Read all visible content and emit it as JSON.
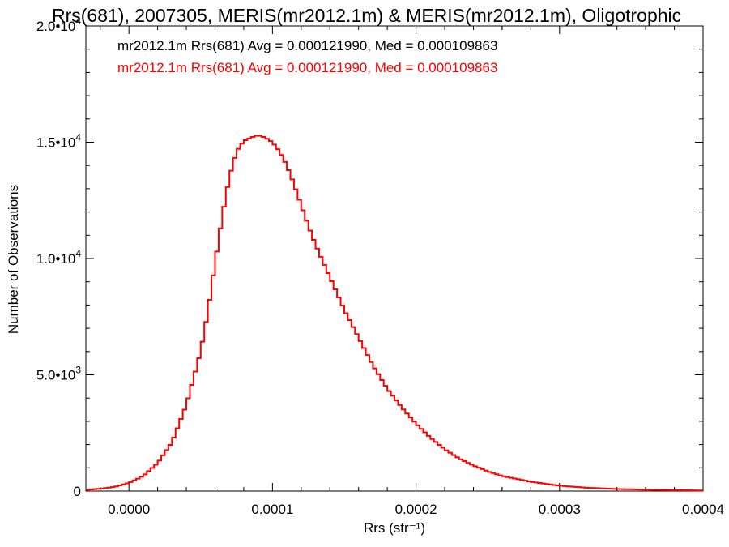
{
  "chart_data": {
    "type": "line",
    "style": "step-histogram",
    "title": "Rrs(681), 2007305, MERIS(mr2012.1m) & MERIS(mr2012.1m), Oligotrophic",
    "xlabel": "Rrs (str⁻¹)",
    "ylabel": "Number of Observations",
    "xlim": [
      -3e-05,
      0.0004
    ],
    "ylim": [
      0,
      20000
    ],
    "x_ticks": [
      0.0,
      0.0001,
      0.0002,
      0.0003,
      0.0004
    ],
    "x_tick_labels": [
      "0.0000",
      "0.0001",
      "0.0002",
      "0.0003",
      "0.0004"
    ],
    "y_ticks": [
      0,
      5000,
      10000,
      15000,
      20000
    ],
    "y_tick_labels": [
      {
        "base": "0",
        "exp": ""
      },
      {
        "base": "5.0•10",
        "exp": "3"
      },
      {
        "base": "1.0•10",
        "exp": "4"
      },
      {
        "base": "1.5•10",
        "exp": "4"
      },
      {
        "base": "2.0•10",
        "exp": "4"
      }
    ],
    "legend": [
      {
        "text": "mr2012.1m Rrs(681) Avg = 0.000121990, Med = 0.000109863",
        "color": "#000000"
      },
      {
        "text": "mr2012.1m Rrs(681) Avg = 0.000121990, Med = 0.000109863",
        "color": "#ff0000"
      }
    ],
    "legend_position": "top-left",
    "series": [
      {
        "color": "#ff0000",
        "points": [
          [
            -3e-05,
            50
          ],
          [
            -2e-05,
            100
          ],
          [
            -1e-05,
            180
          ],
          [
            0.0,
            350
          ],
          [
            1e-05,
            650
          ],
          [
            2e-05,
            1200
          ],
          [
            3e-05,
            2100
          ],
          [
            4e-05,
            3700
          ],
          [
            5e-05,
            6000
          ],
          [
            5.5e-05,
            7700
          ],
          [
            6e-05,
            9800
          ],
          [
            6.5e-05,
            11800
          ],
          [
            7e-05,
            13500
          ],
          [
            7.5e-05,
            14600
          ],
          [
            8e-05,
            15050
          ],
          [
            8.5e-05,
            15200
          ],
          [
            9e-05,
            15300
          ],
          [
            9.5e-05,
            15200
          ],
          [
            0.0001,
            15000
          ],
          [
            0.000105,
            14600
          ],
          [
            0.00011,
            14000
          ],
          [
            0.000115,
            13200
          ],
          [
            0.00012,
            12300
          ],
          [
            0.000125,
            11400
          ],
          [
            0.00013,
            10600
          ],
          [
            0.000135,
            9900
          ],
          [
            0.00014,
            9200
          ],
          [
            0.00015,
            7800
          ],
          [
            0.00016,
            6600
          ],
          [
            0.00017,
            5400
          ],
          [
            0.00018,
            4400
          ],
          [
            0.00019,
            3600
          ],
          [
            0.0002,
            2900
          ],
          [
            0.00021,
            2300
          ],
          [
            0.00022,
            1800
          ],
          [
            0.00023,
            1400
          ],
          [
            0.00024,
            1100
          ],
          [
            0.00025,
            850
          ],
          [
            0.00026,
            650
          ],
          [
            0.00028,
            400
          ],
          [
            0.0003,
            230
          ],
          [
            0.00032,
            140
          ],
          [
            0.00034,
            90
          ],
          [
            0.00036,
            60
          ],
          [
            0.00038,
            40
          ],
          [
            0.0004,
            25
          ]
        ]
      }
    ]
  }
}
